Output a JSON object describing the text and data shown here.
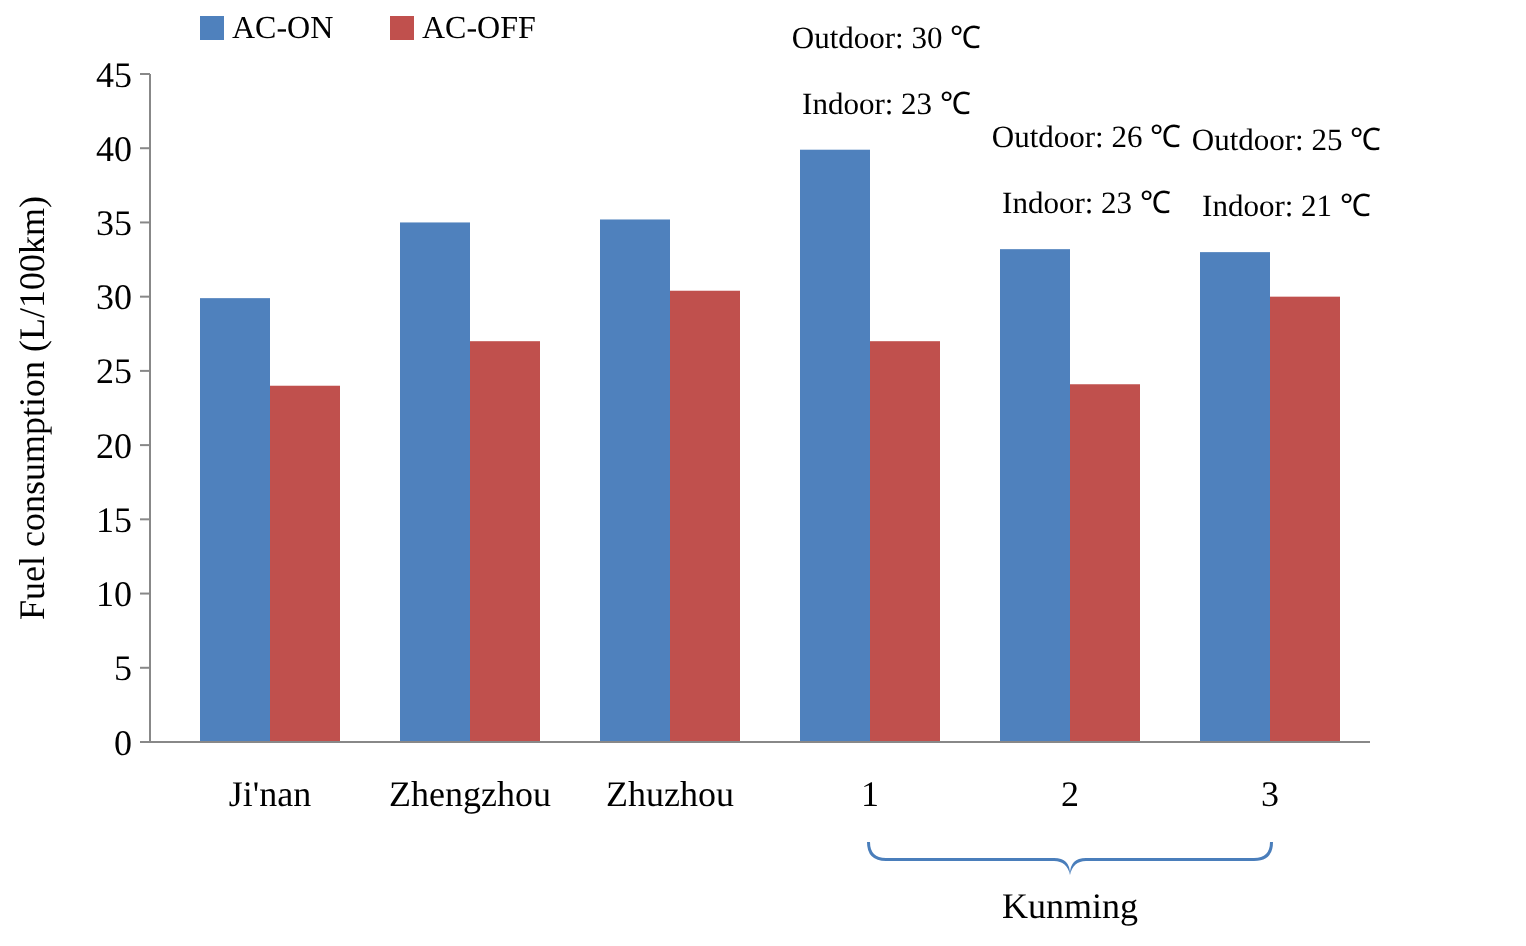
{
  "chart_data": {
    "type": "bar",
    "ylabel": "Fuel consumption (L/100km)",
    "categories": [
      "Ji'nan",
      "Zhengzhou",
      "Zhuzhou",
      "1",
      "2",
      "3"
    ],
    "series": [
      {
        "name": "AC-ON",
        "color": "#4f81bd",
        "values": [
          29.9,
          35,
          35.2,
          39.9,
          33.2,
          33
        ]
      },
      {
        "name": "AC-OFF",
        "color": "#c0504d",
        "values": [
          24,
          27,
          30.4,
          27,
          24.1,
          30
        ]
      }
    ],
    "ylim": [
      0,
      45
    ],
    "yticks": [
      0,
      5,
      10,
      15,
      20,
      25,
      30,
      35,
      40,
      45
    ],
    "grid": false,
    "legend": "top left",
    "annotations": [
      "Outdoor: 30 ℃",
      "Indoor: 23 ℃",
      "Outdoor: 26 ℃",
      "Indoor: 23 ℃",
      "Outdoor: 25 ℃",
      "Indoor: 21 ℃",
      "Kunming"
    ]
  }
}
